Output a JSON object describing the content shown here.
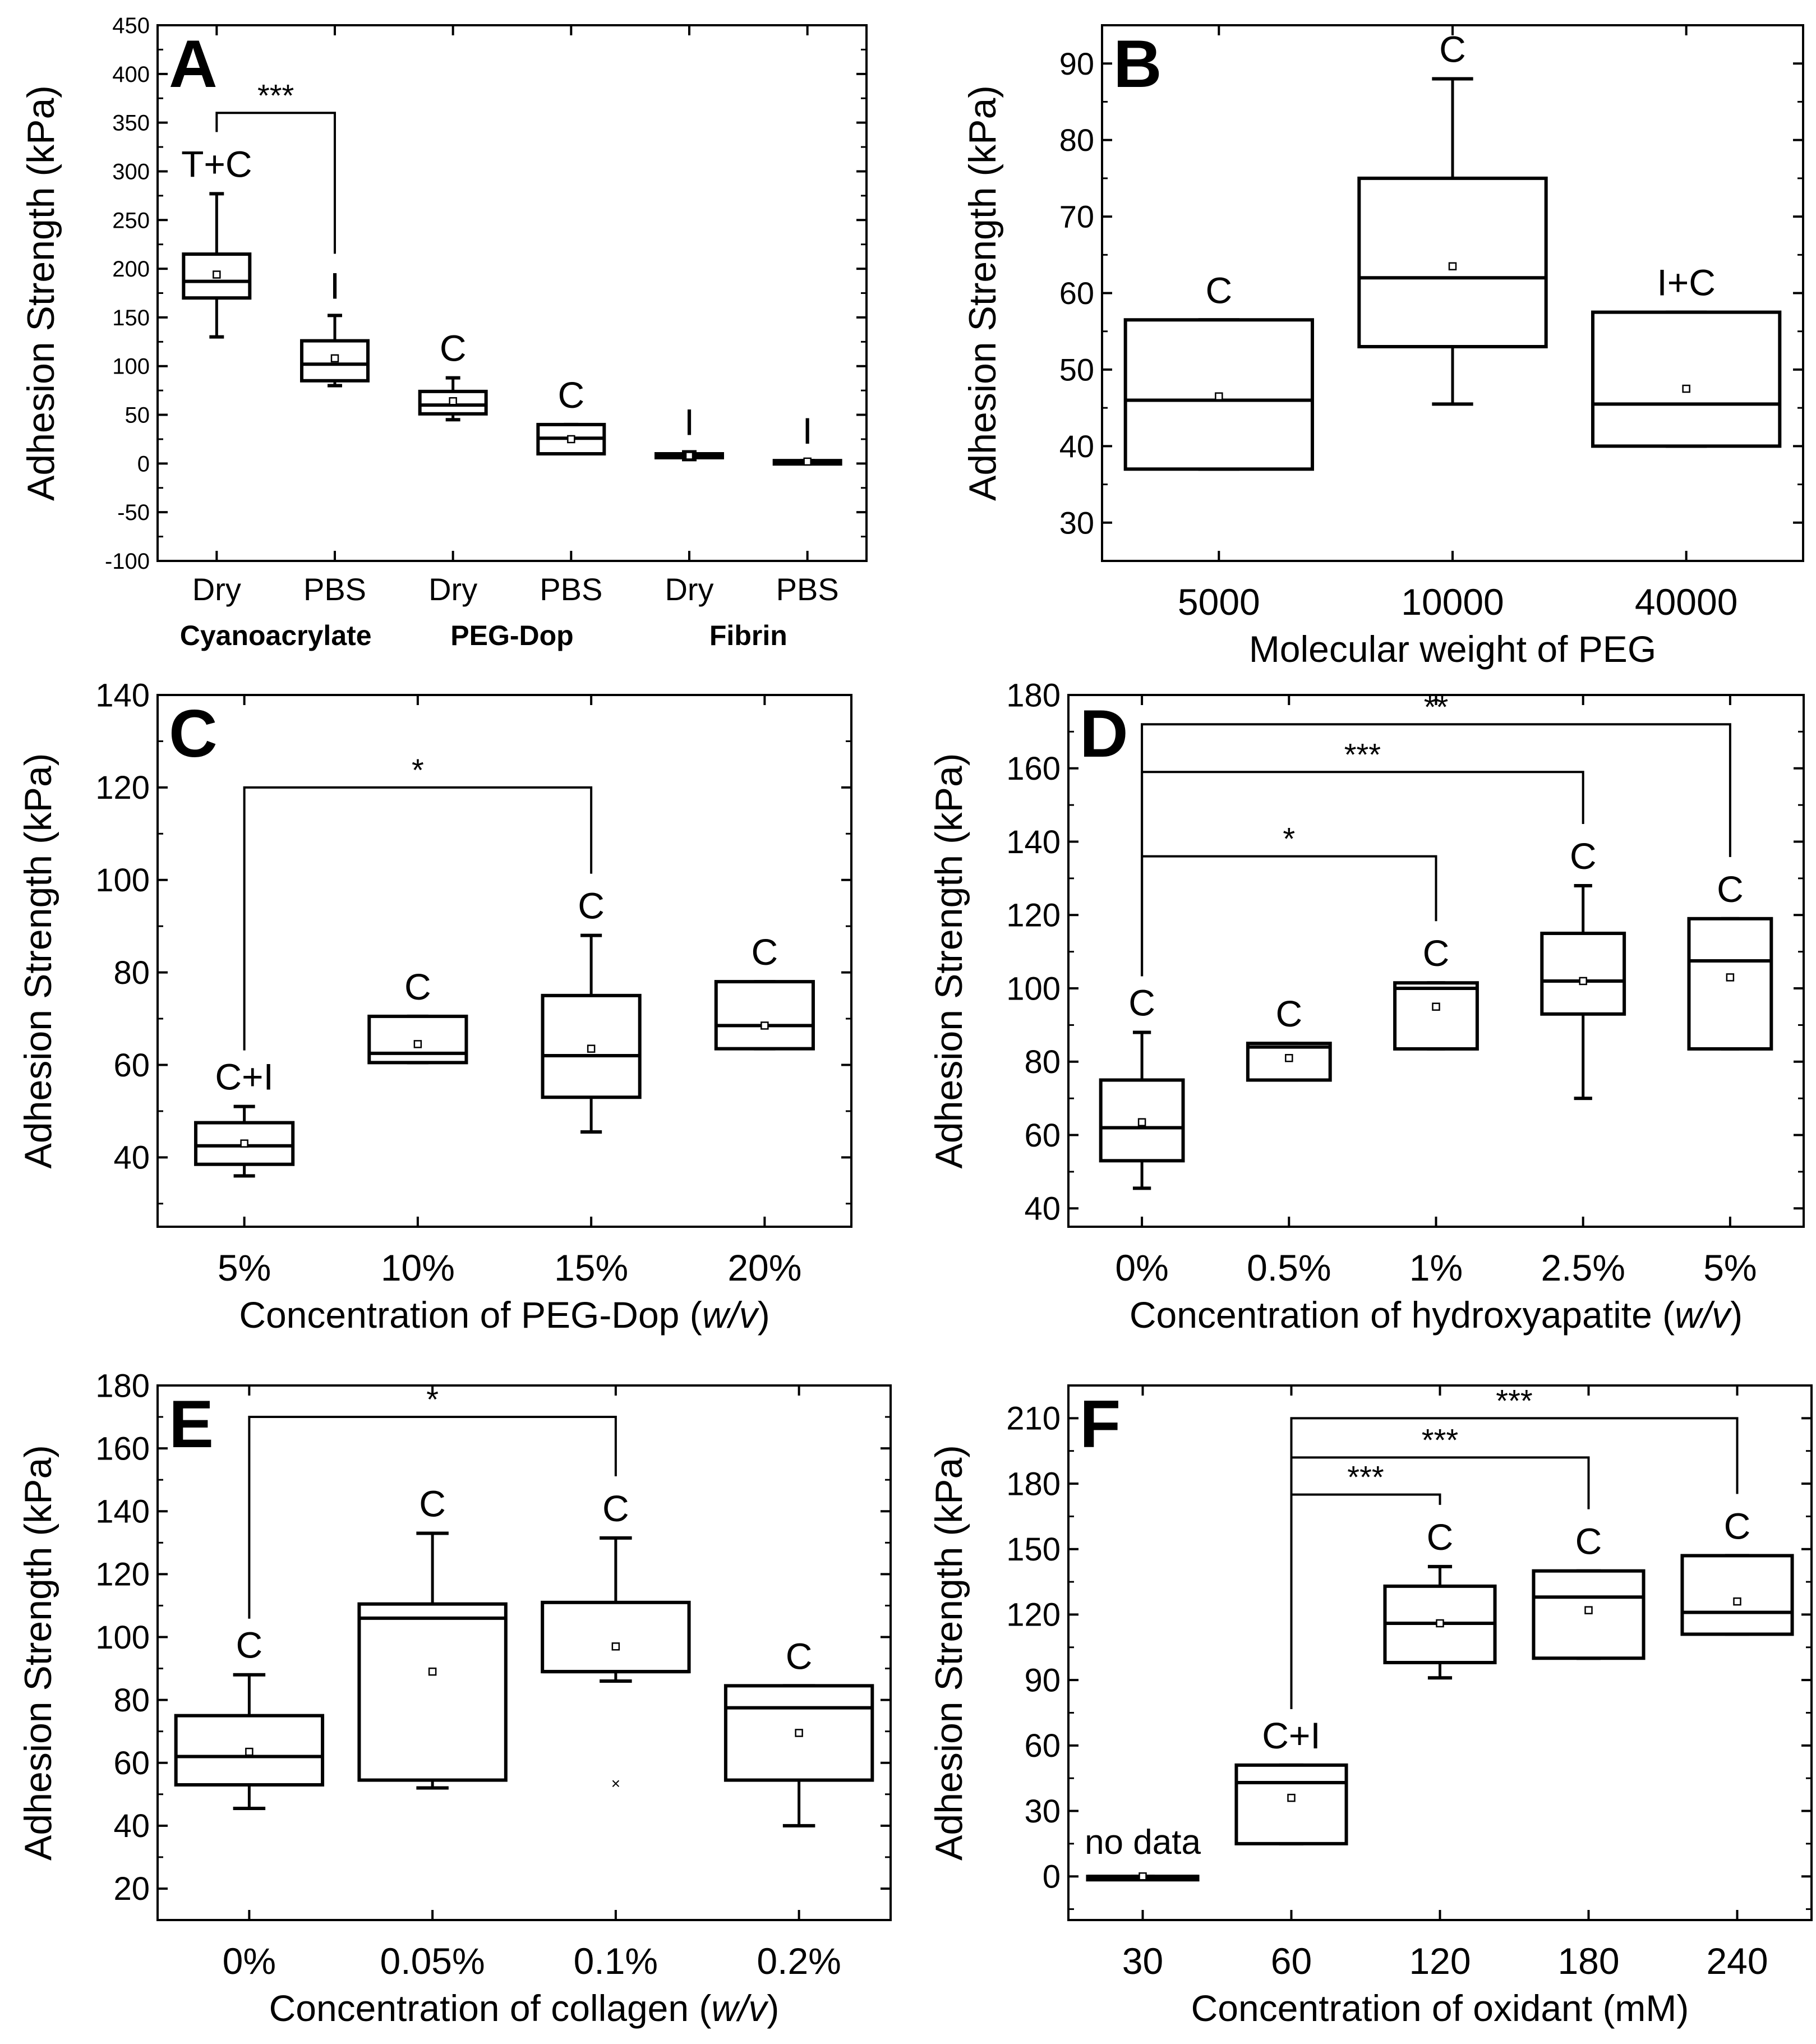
{
  "figure": {
    "panels": [
      {
        "id": "A",
        "panel_label": "A",
        "ylabel": "Adhesion Strength (kPa)",
        "xlabel": "",
        "ylim": [
          -100,
          450
        ],
        "yticks": [
          "450",
          "400",
          "350",
          "300",
          "250",
          "200",
          "150",
          "100",
          "50",
          "0",
          "-50",
          "-100"
        ],
        "categories": [
          "Dry",
          "PBS",
          "Dry",
          "PBS",
          "Dry",
          "PBS"
        ],
        "groups": [
          {
            "label": "Cyanoacrylate",
            "from": 0,
            "to": 1
          },
          {
            "label": "PEG-Dop",
            "from": 2,
            "to": 3
          },
          {
            "label": "Fibrin",
            "from": 4,
            "to": 5
          }
        ]
      },
      {
        "id": "B",
        "panel_label": "B",
        "ylabel": "Adhesion Strength (kPa)",
        "xlabel": "Molecular weight of PEG",
        "ylim": [
          25,
          95
        ],
        "yticks": [
          "90",
          "80",
          "70",
          "60",
          "50",
          "40",
          "30"
        ],
        "categories": [
          "5000",
          "10000",
          "40000"
        ]
      },
      {
        "id": "C",
        "panel_label": "C",
        "ylabel": "Adhesion Strength (kPa)",
        "xlabel": "Concentration of PEG-Dop (w/v)",
        "ylim": [
          25,
          140
        ],
        "yticks": [
          "140",
          "120",
          "100",
          "80",
          "60",
          "40"
        ],
        "categories": [
          "5%",
          "10%",
          "15%",
          "20%"
        ]
      },
      {
        "id": "D",
        "panel_label": "D",
        "ylabel": "Adhesion Strength (kPa)",
        "xlabel": "Concentration of hydroxyapatite (w/v)",
        "ylim": [
          35,
          180
        ],
        "yticks": [
          "180",
          "160",
          "140",
          "120",
          "100",
          "80",
          "60",
          "40"
        ],
        "categories": [
          "0%",
          "0.5%",
          "1%",
          "2.5%",
          "5%"
        ]
      },
      {
        "id": "E",
        "panel_label": "E",
        "ylabel": "Adhesion Strength (kPa)",
        "xlabel": "Concentration of collagen (w/v)",
        "ylim": [
          10,
          180
        ],
        "yticks": [
          "180",
          "160",
          "140",
          "120",
          "100",
          "80",
          "60",
          "40",
          "20"
        ],
        "categories": [
          "0%",
          "0.05%",
          "0.1%",
          "0.2%"
        ]
      },
      {
        "id": "F",
        "panel_label": "F",
        "ylabel": "Adhesion Strength (kPa)",
        "xlabel": "Concentration of oxidant (mM)",
        "ylim": [
          -20,
          225
        ],
        "yticks": [
          "210",
          "180",
          "150",
          "120",
          "90",
          "60",
          "30",
          "0"
        ],
        "categories": [
          "30",
          "60",
          "120",
          "180",
          "240"
        ],
        "note": "no data"
      }
    ]
  },
  "chart_data": [
    {
      "type": "box",
      "panel": "A",
      "ylabel": "Adhesion Strength (kPa)",
      "ylim": [
        -100,
        450
      ],
      "categories": [
        "Dry",
        "PBS",
        "Dry",
        "PBS",
        "Dry",
        "PBS"
      ],
      "groups": [
        "Cyanoacrylate",
        "PEG-Dop",
        "Fibrin"
      ],
      "boxes": [
        {
          "q1": 170,
          "median": 187,
          "q3": 215,
          "whisker_low": 130,
          "whisker_high": 277,
          "mean": 194,
          "failure_mode": "T+C"
        },
        {
          "q1": 85,
          "median": 102,
          "q3": 126,
          "whisker_low": 80,
          "whisker_high": 152,
          "mean": 108,
          "failure_mode": "I"
        },
        {
          "q1": 51,
          "median": 60,
          "q3": 74,
          "whisker_low": 45,
          "whisker_high": 88,
          "mean": 64,
          "failure_mode": "C"
        },
        {
          "q1": 10,
          "median": 26,
          "q3": 40,
          "whisker_low": 10,
          "whisker_high": 40,
          "mean": 25,
          "failure_mode": "C"
        },
        {
          "q1": 6,
          "median": 8,
          "q3": 10,
          "whisker_low": 4,
          "whisker_high": 12,
          "mean": 8,
          "failure_mode": "I"
        },
        {
          "q1": 1,
          "median": 2,
          "q3": 3,
          "whisker_low": 1,
          "whisker_high": 3,
          "mean": 2,
          "failure_mode": "I"
        }
      ],
      "significance": [
        {
          "from": 0,
          "to": 1,
          "label": "***",
          "y": 360
        }
      ]
    },
    {
      "type": "box",
      "panel": "B",
      "xlabel": "Molecular weight of PEG",
      "ylabel": "Adhesion Strength (kPa)",
      "ylim": [
        25,
        95
      ],
      "categories": [
        "5000",
        "10000",
        "40000"
      ],
      "boxes": [
        {
          "q1": 37,
          "median": 46,
          "q3": 56.5,
          "whisker_low": 37,
          "whisker_high": 56.5,
          "mean": 46.5,
          "failure_mode": "C"
        },
        {
          "q1": 53,
          "median": 62,
          "q3": 75,
          "whisker_low": 45.5,
          "whisker_high": 88,
          "mean": 63.5,
          "failure_mode": "C"
        },
        {
          "q1": 40,
          "median": 45.5,
          "q3": 57.5,
          "whisker_low": 40,
          "whisker_high": 57.5,
          "mean": 47.5,
          "failure_mode": "I+C"
        }
      ],
      "significance": []
    },
    {
      "type": "box",
      "panel": "C",
      "xlabel": "Concentration of PEG-Dop (w/v)",
      "ylabel": "Adhesion Strength (kPa)",
      "ylim": [
        25,
        140
      ],
      "categories": [
        "5%",
        "10%",
        "15%",
        "20%"
      ],
      "boxes": [
        {
          "q1": 38.5,
          "median": 42.5,
          "q3": 47.5,
          "whisker_low": 36,
          "whisker_high": 51,
          "mean": 43,
          "failure_mode": "C+I"
        },
        {
          "q1": 60.5,
          "median": 62.5,
          "q3": 70.5,
          "whisker_low": 60.5,
          "whisker_high": 70.5,
          "mean": 64.5,
          "failure_mode": "C"
        },
        {
          "q1": 53,
          "median": 62,
          "q3": 75,
          "whisker_low": 45.5,
          "whisker_high": 88,
          "mean": 63.5,
          "failure_mode": "C"
        },
        {
          "q1": 63.5,
          "median": 68.5,
          "q3": 78,
          "whisker_low": 63.5,
          "whisker_high": 78,
          "mean": 68.5,
          "failure_mode": "C"
        }
      ],
      "significance": [
        {
          "from": 0,
          "to": 2,
          "label": "*",
          "y": 120
        }
      ]
    },
    {
      "type": "box",
      "panel": "D",
      "xlabel": "Concentration of hydroxyapatite (w/v)",
      "ylabel": "Adhesion Strength (kPa)",
      "ylim": [
        35,
        180
      ],
      "categories": [
        "0%",
        "0.5%",
        "1%",
        "2.5%",
        "5%"
      ],
      "boxes": [
        {
          "q1": 53,
          "median": 62,
          "q3": 75,
          "whisker_low": 45.5,
          "whisker_high": 88,
          "mean": 63.5,
          "failure_mode": "C"
        },
        {
          "q1": 75,
          "median": 84,
          "q3": 85,
          "whisker_low": 75,
          "whisker_high": 85,
          "mean": 81,
          "failure_mode": "C"
        },
        {
          "q1": 83.5,
          "median": 100,
          "q3": 101.5,
          "whisker_low": 83.5,
          "whisker_high": 101.5,
          "mean": 95,
          "failure_mode": "C"
        },
        {
          "q1": 93,
          "median": 102,
          "q3": 115,
          "whisker_low": 70,
          "whisker_high": 128,
          "mean": 102,
          "failure_mode": "C"
        },
        {
          "q1": 83.5,
          "median": 107.5,
          "q3": 119,
          "whisker_low": 83.5,
          "whisker_high": 119,
          "mean": 103,
          "failure_mode": "C"
        }
      ],
      "significance": [
        {
          "from": 0,
          "to": 2,
          "label": "*",
          "y": 136
        },
        {
          "from": 0,
          "to": 3,
          "label": "***",
          "y": 159
        },
        {
          "from": 0,
          "to": 4,
          "label": "**",
          "y": 172
        }
      ]
    },
    {
      "type": "box",
      "panel": "E",
      "xlabel": "Concentration of collagen (w/v)",
      "ylabel": "Adhesion Strength (kPa)",
      "ylim": [
        10,
        180
      ],
      "categories": [
        "0%",
        "0.05%",
        "0.1%",
        "0.2%"
      ],
      "boxes": [
        {
          "q1": 53,
          "median": 62,
          "q3": 75,
          "whisker_low": 45.5,
          "whisker_high": 88,
          "mean": 63.5,
          "failure_mode": "C"
        },
        {
          "q1": 54.5,
          "median": 106,
          "q3": 110.5,
          "whisker_low": 52,
          "whisker_high": 133,
          "mean": 89,
          "failure_mode": "C"
        },
        {
          "q1": 89,
          "median": 89,
          "q3": 111,
          "whisker_low": 86,
          "whisker_high": 131.5,
          "mean": 97,
          "outlier": 53.5,
          "failure_mode": "C"
        },
        {
          "q1": 54.5,
          "median": 77.5,
          "q3": 84.5,
          "whisker_low": 40,
          "whisker_high": 84.5,
          "mean": 69.5,
          "failure_mode": "C"
        }
      ],
      "significance": [
        {
          "from": 0,
          "to": 2,
          "label": "*",
          "y": 170
        }
      ]
    },
    {
      "type": "box",
      "panel": "F",
      "xlabel": "Concentration of oxidant (mM)",
      "ylabel": "Adhesion Strength (kPa)",
      "ylim": [
        -20,
        225
      ],
      "categories": [
        "30",
        "60",
        "120",
        "180",
        "240"
      ],
      "boxes": [
        {
          "q1": 0,
          "median": 0,
          "q3": 0,
          "whisker_low": 0,
          "whisker_high": 0,
          "mean": 0,
          "failure_mode": ""
        },
        {
          "q1": 15,
          "median": 43,
          "q3": 51,
          "whisker_low": 15,
          "whisker_high": 51,
          "mean": 36,
          "failure_mode": "C+I"
        },
        {
          "q1": 98,
          "median": 116,
          "q3": 133,
          "whisker_low": 91,
          "whisker_high": 142,
          "mean": 116,
          "failure_mode": "C"
        },
        {
          "q1": 100,
          "median": 128,
          "q3": 140,
          "whisker_low": 100,
          "whisker_high": 140,
          "mean": 122,
          "failure_mode": "C"
        },
        {
          "q1": 111,
          "median": 121,
          "q3": 147,
          "whisker_low": 111,
          "whisker_high": 147,
          "mean": 126,
          "failure_mode": "C"
        }
      ],
      "significance": [
        {
          "from": 1,
          "to": 2,
          "label": "***",
          "y": 175
        },
        {
          "from": 1,
          "to": 3,
          "label": "***",
          "y": 192
        },
        {
          "from": 1,
          "to": 4,
          "label": "***",
          "y": 210
        }
      ]
    }
  ]
}
